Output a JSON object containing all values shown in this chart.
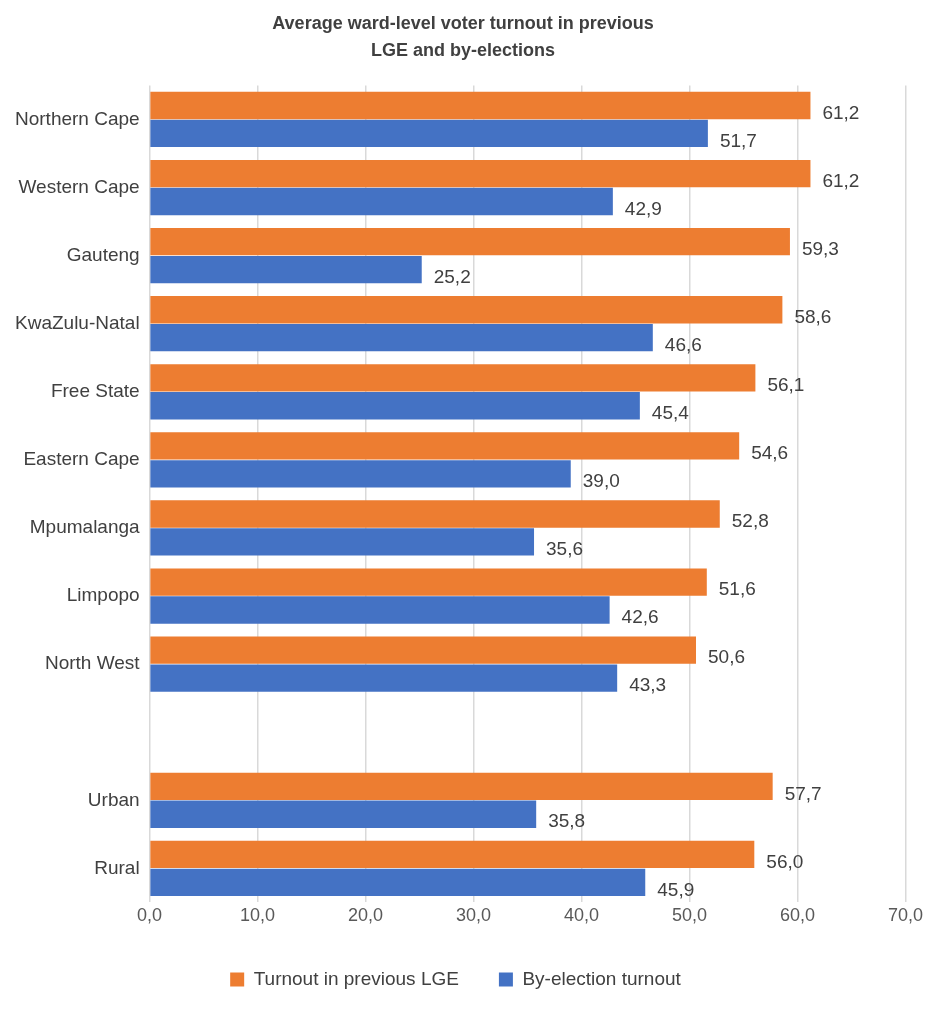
{
  "chart_data": {
    "type": "bar",
    "orientation": "horizontal",
    "title": "Average ward-level voter turnout in previous LGE and by-elections",
    "categories": [
      "Northern Cape",
      "Western Cape",
      "Gauteng",
      "KwaZulu-Natal",
      "Free State",
      "Eastern Cape",
      "Mpumalanga",
      "Limpopo",
      "North West",
      null,
      "Urban",
      "Rural"
    ],
    "series": [
      {
        "name": "Turnout in previous LGE",
        "color": "#ed7d31",
        "values": [
          61.2,
          61.2,
          59.3,
          58.6,
          56.1,
          54.6,
          52.8,
          51.6,
          50.6,
          null,
          57.7,
          56.0
        ],
        "value_labels": [
          "61,2",
          "61,2",
          "59,3",
          "58,6",
          "56,1",
          "54,6",
          "52,8",
          "51,6",
          "50,6",
          null,
          "57,7",
          "56,0"
        ]
      },
      {
        "name": "By-election turnout",
        "color": "#4472c4",
        "values": [
          51.7,
          42.9,
          25.2,
          46.6,
          45.4,
          39.0,
          35.6,
          42.6,
          43.3,
          null,
          35.8,
          45.9
        ],
        "value_labels": [
          "51,7",
          "42,9",
          "25,2",
          "46,6",
          "45,4",
          "39,0",
          "35,6",
          "42,6",
          "43,3",
          null,
          "35,8",
          "45,9"
        ]
      }
    ],
    "xlim": [
      0,
      70
    ],
    "xticks": [
      {
        "value": 0,
        "label": "0,0"
      },
      {
        "value": 10,
        "label": "10,0"
      },
      {
        "value": 20,
        "label": "20,0"
      },
      {
        "value": 30,
        "label": "30,0"
      },
      {
        "value": 40,
        "label": "40,0"
      },
      {
        "value": 50,
        "label": "50,0"
      },
      {
        "value": 60,
        "label": "60,0"
      },
      {
        "value": 70,
        "label": "70,0"
      }
    ],
    "grid": "x",
    "legend": "bottom"
  }
}
